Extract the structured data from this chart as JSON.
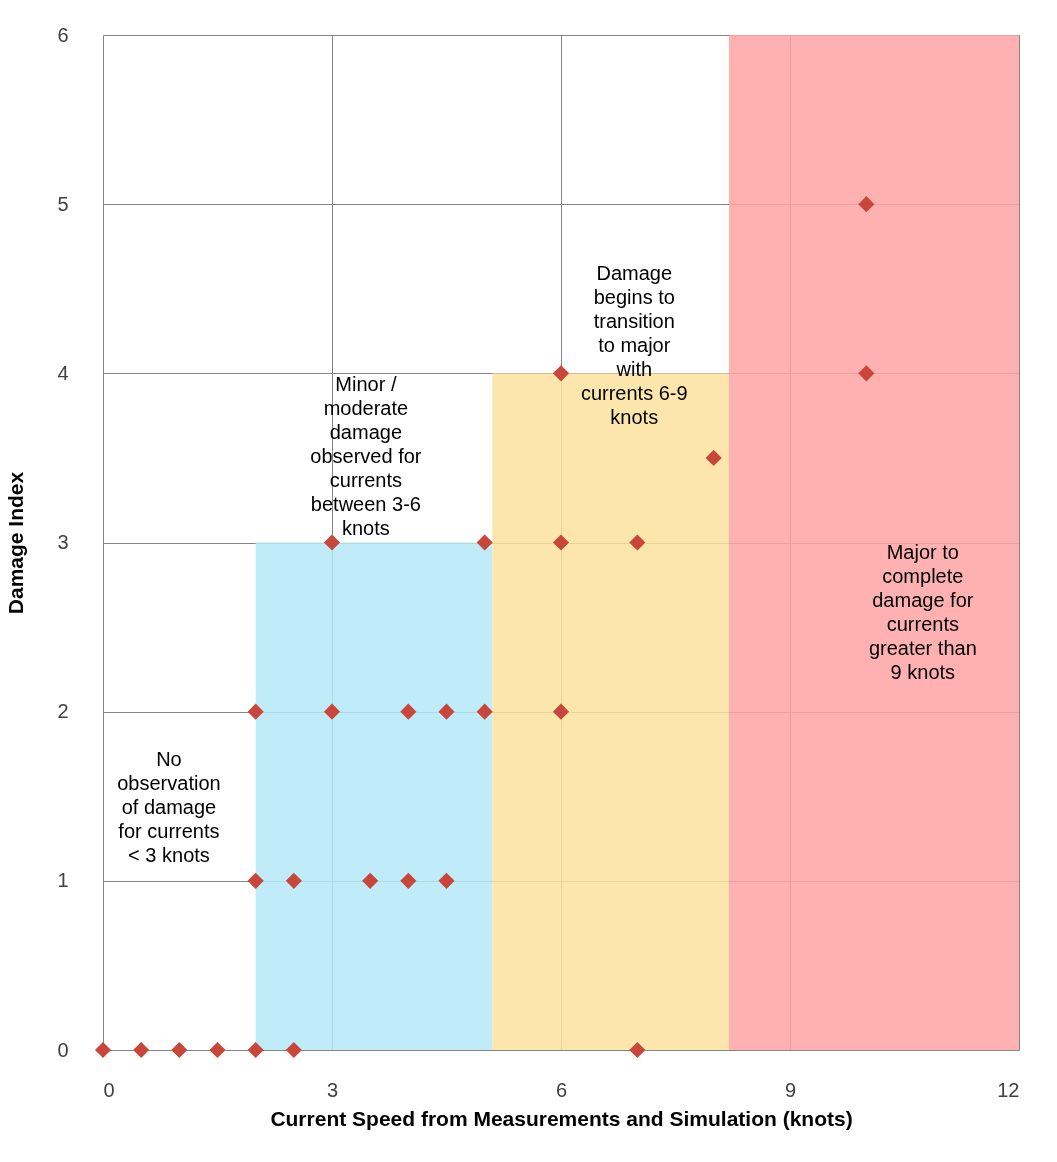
{
  "chart_data": {
    "type": "scatter",
    "xlabel": "Current Speed from Measurements and Simulation (knots)",
    "ylabel": "Damage Index",
    "xlim": [
      0,
      12
    ],
    "xticks": [
      0,
      3,
      6,
      9,
      12
    ],
    "ylim": [
      0,
      6
    ],
    "yticks": [
      0,
      1,
      2,
      3,
      4,
      5,
      6
    ],
    "grid": true,
    "series": [
      {
        "type": "area",
        "color": "#b5e9f8",
        "x": [
          2,
          5.1
        ],
        "values": [
          3,
          3
        ]
      },
      {
        "type": "area",
        "color": "#fbe29c",
        "x": [
          5.1,
          8.2
        ],
        "values": [
          4,
          4
        ]
      },
      {
        "type": "area",
        "color": "#ffa3a3",
        "x": [
          8.2,
          12
        ],
        "values": [
          6,
          6
        ]
      },
      {
        "color": "#c8473a",
        "marker": "diamond",
        "x": [
          0,
          0.5,
          1,
          1.5,
          2,
          2.5,
          7,
          2,
          2.5,
          3.5,
          4,
          4.5,
          2,
          3,
          4,
          4.5,
          5,
          6,
          3,
          5,
          6,
          7,
          8,
          6,
          10,
          10
        ],
        "values": [
          0,
          0,
          0,
          0,
          0,
          0,
          0,
          1,
          1,
          1,
          1,
          1,
          2,
          2,
          2,
          2,
          2,
          2,
          3,
          3,
          3,
          3,
          3.5,
          4,
          4,
          5
        ]
      }
    ],
    "annotations": [
      "No observation of damage for currents < 3 knots",
      "Minor / moderate damage observed for currents between 3-6 knots",
      "Damage begins to transition to major with currents 6-9 knots",
      "Major to complete damage for currents greater than 9 knots"
    ]
  }
}
